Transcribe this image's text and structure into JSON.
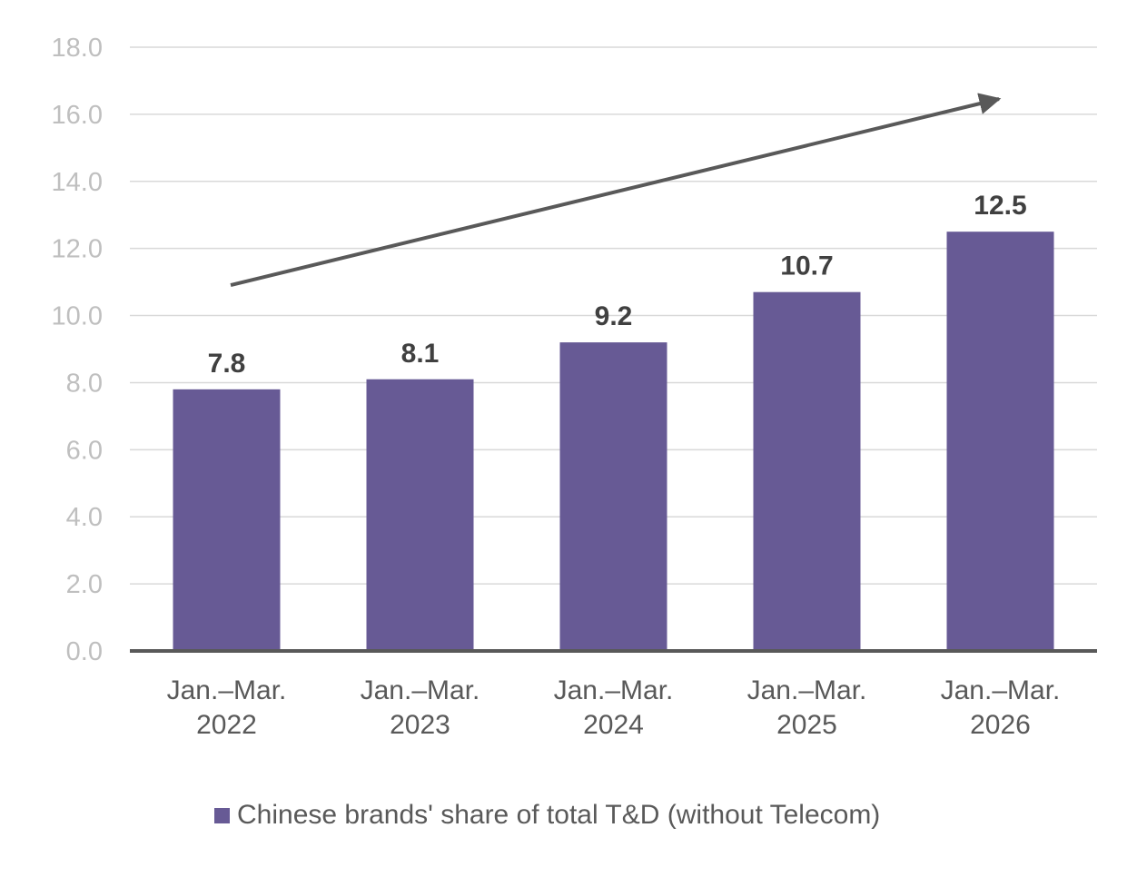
{
  "chart_data": {
    "type": "bar",
    "categories": [
      [
        "Jan.–Mar.",
        "2022"
      ],
      [
        "Jan.–Mar.",
        "2023"
      ],
      [
        "Jan.–Mar.",
        "2024"
      ],
      [
        "Jan.–Mar.",
        "2025"
      ],
      [
        "Jan.–Mar.",
        "2026"
      ]
    ],
    "series": [
      {
        "name": "Chinese brands' share of total T&D (without Telecom)",
        "values": [
          7.8,
          8.1,
          9.2,
          10.7,
          12.5
        ],
        "data_labels": [
          "7.8",
          "8.1",
          "9.2",
          "10.7",
          "12.5"
        ]
      }
    ],
    "ylim": [
      0,
      18
    ],
    "yticks": [
      "0.0",
      "2.0",
      "4.0",
      "6.0",
      "8.0",
      "10.0",
      "12.0",
      "14.0",
      "16.0",
      "18.0"
    ],
    "grid": true,
    "legend_position": "bottom",
    "annotations": [
      {
        "type": "trend-arrow",
        "direction": "upward"
      }
    ],
    "colors": {
      "bar": "#675a95",
      "grid": "#d9d9d9",
      "axis": "#595959",
      "arrow": "#595959"
    }
  }
}
